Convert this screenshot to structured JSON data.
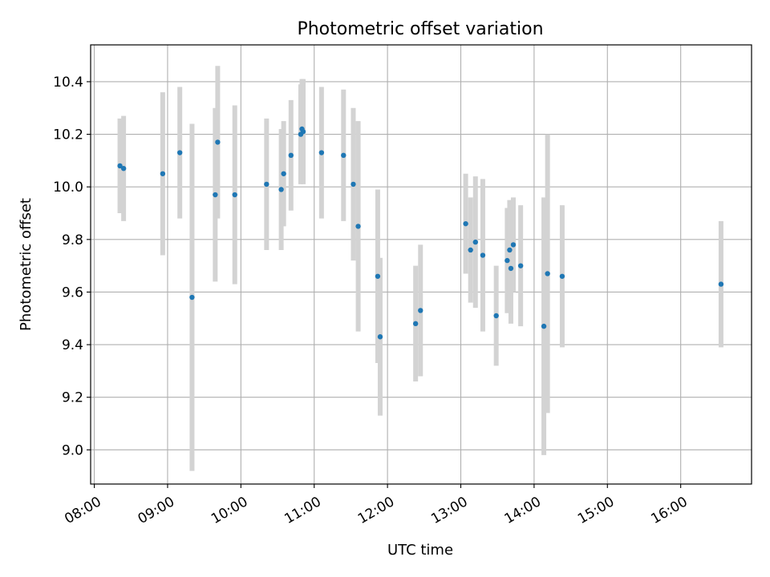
{
  "chart_data": {
    "type": "scatter",
    "title": "Photometric offset variation",
    "xlabel": "UTC time",
    "ylabel": "Photometric offset",
    "xlim": [
      "07:57",
      "16:58"
    ],
    "ylim": [
      8.87,
      10.54
    ],
    "x_ticks": [
      "08:00",
      "09:00",
      "10:00",
      "11:00",
      "12:00",
      "13:00",
      "14:00",
      "15:00",
      "16:00"
    ],
    "y_ticks": [
      9.0,
      9.2,
      9.4,
      9.6,
      9.8,
      10.0,
      10.2,
      10.4
    ],
    "grid": true,
    "colors": {
      "point": "#1f77b4",
      "errorbar": "#d3d3d3",
      "grid": "#b0b0b0"
    },
    "points": [
      {
        "t": "08:21",
        "y": 10.08,
        "err": 0.18
      },
      {
        "t": "08:24",
        "y": 10.07,
        "err": 0.2
      },
      {
        "t": "08:56",
        "y": 10.05,
        "err": 0.31
      },
      {
        "t": "09:10",
        "y": 10.13,
        "err": 0.25
      },
      {
        "t": "09:20",
        "y": 9.58,
        "err": 0.66
      },
      {
        "t": "09:39",
        "y": 9.97,
        "err": 0.33
      },
      {
        "t": "09:41",
        "y": 10.17,
        "err": 0.29
      },
      {
        "t": "09:55",
        "y": 9.97,
        "err": 0.34
      },
      {
        "t": "10:21",
        "y": 10.01,
        "err": 0.25
      },
      {
        "t": "10:33",
        "y": 9.99,
        "err": 0.23
      },
      {
        "t": "10:35",
        "y": 10.05,
        "err": 0.2
      },
      {
        "t": "10:41",
        "y": 10.12,
        "err": 0.21
      },
      {
        "t": "10:49",
        "y": 10.2,
        "err": 0.19
      },
      {
        "t": "10:50",
        "y": 10.22,
        "err": 0.19
      },
      {
        "t": "10:51",
        "y": 10.21,
        "err": 0.2
      },
      {
        "t": "11:06",
        "y": 10.13,
        "err": 0.25
      },
      {
        "t": "11:24",
        "y": 10.12,
        "err": 0.25
      },
      {
        "t": "11:32",
        "y": 10.01,
        "err": 0.29
      },
      {
        "t": "11:36",
        "y": 9.85,
        "err": 0.4
      },
      {
        "t": "11:52",
        "y": 9.66,
        "err": 0.33
      },
      {
        "t": "11:54",
        "y": 9.43,
        "err": 0.3
      },
      {
        "t": "12:23",
        "y": 9.48,
        "err": 0.22
      },
      {
        "t": "12:27",
        "y": 9.53,
        "err": 0.25
      },
      {
        "t": "13:04",
        "y": 9.86,
        "err": 0.19
      },
      {
        "t": "13:08",
        "y": 9.76,
        "err": 0.2
      },
      {
        "t": "13:12",
        "y": 9.79,
        "err": 0.25
      },
      {
        "t": "13:18",
        "y": 9.74,
        "err": 0.29
      },
      {
        "t": "13:29",
        "y": 9.51,
        "err": 0.19
      },
      {
        "t": "13:38",
        "y": 9.72,
        "err": 0.2
      },
      {
        "t": "13:40",
        "y": 9.76,
        "err": 0.19
      },
      {
        "t": "13:41",
        "y": 9.69,
        "err": 0.21
      },
      {
        "t": "13:43",
        "y": 9.78,
        "err": 0.18
      },
      {
        "t": "13:49",
        "y": 9.7,
        "err": 0.23
      },
      {
        "t": "14:08",
        "y": 9.47,
        "err": 0.49
      },
      {
        "t": "14:11",
        "y": 9.67,
        "err": 0.53
      },
      {
        "t": "14:23",
        "y": 9.66,
        "err": 0.27
      },
      {
        "t": "16:33",
        "y": 9.63,
        "err": 0.24
      }
    ]
  }
}
